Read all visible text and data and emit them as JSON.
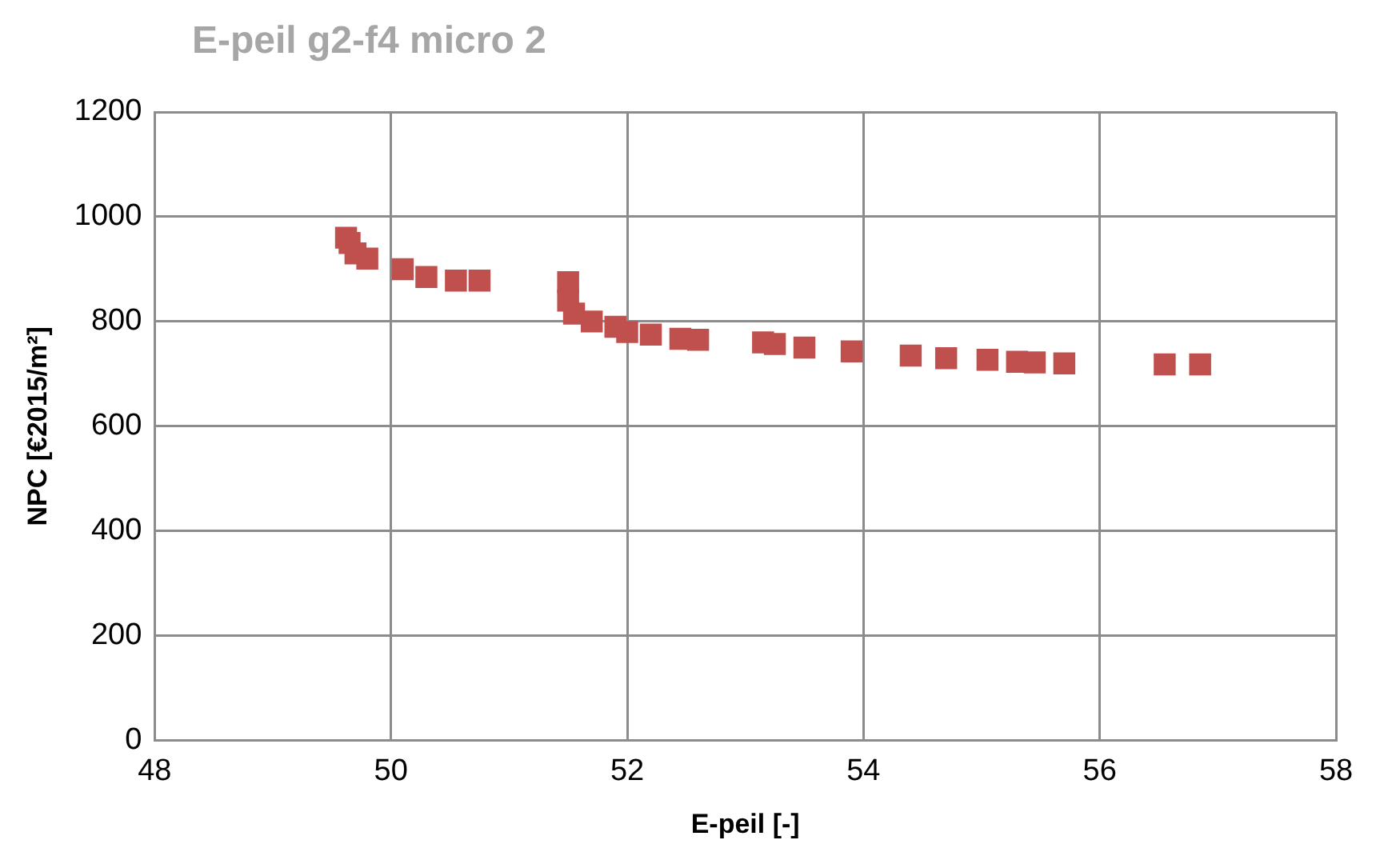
{
  "chart_data": {
    "type": "scatter",
    "title": "E-peil g2-f4 micro 2",
    "xlabel": "E-peil [-]",
    "ylabel": "NPC [€2015/m²]",
    "x": [
      49.62,
      49.65,
      49.7,
      49.8,
      50.1,
      50.3,
      50.55,
      50.75,
      51.5,
      51.5,
      51.55,
      51.7,
      51.9,
      52.0,
      52.2,
      52.45,
      52.6,
      53.15,
      53.25,
      53.5,
      53.9,
      54.4,
      54.7,
      55.05,
      55.3,
      55.45,
      55.7,
      56.55,
      56.85
    ],
    "series": [
      {
        "color": "#c0504d",
        "values": [
          960,
          950,
          930,
          920,
          900,
          885,
          878,
          878,
          875,
          840,
          815,
          800,
          790,
          780,
          775,
          767,
          765,
          760,
          757,
          750,
          743,
          735,
          730,
          727,
          723,
          722,
          720,
          718,
          718
        ]
      }
    ],
    "xlim": [
      48,
      58
    ],
    "xticks": [
      48,
      50,
      52,
      54,
      56,
      58
    ],
    "ylim": [
      0,
      1200
    ],
    "yticks": [
      0,
      200,
      400,
      600,
      800,
      1000,
      1200
    ],
    "grid": true,
    "marker": "square"
  }
}
